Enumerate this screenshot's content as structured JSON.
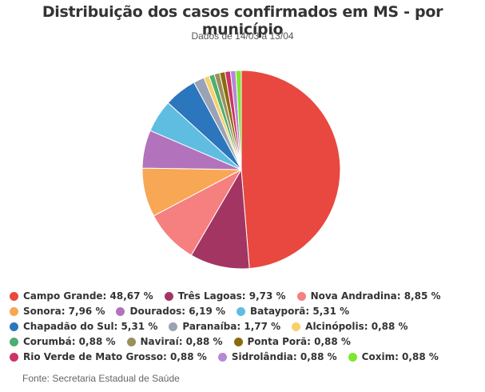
{
  "header": {
    "title": "Distribuição dos casos confirmados em MS - por município",
    "subtitle": "Dados de 14/03 a 13/04"
  },
  "footer": {
    "source": "Fonte: Secretaria Estadual de Saúde"
  },
  "chart_data": {
    "type": "pie",
    "title": "Distribuição dos casos confirmados em MS - por município",
    "subtitle": "Dados de 14/03 a 13/04",
    "legend_position": "bottom",
    "slices": [
      {
        "name": "Campo Grande",
        "value": 48.67,
        "label": "Campo Grande: 48,67 %",
        "color": "#e8483f"
      },
      {
        "name": "Três Lagoas",
        "value": 9.73,
        "label": "Três Lagoas: 9,73 %",
        "color": "#a33563"
      },
      {
        "name": "Nova Andradina",
        "value": 8.85,
        "label": "Nova Andradina: 8,85 %",
        "color": "#f67f7f"
      },
      {
        "name": "Sonora",
        "value": 7.96,
        "label": "Sonora: 7,96 %",
        "color": "#f8a755"
      },
      {
        "name": "Dourados",
        "value": 6.19,
        "label": "Dourados: 6,19 %",
        "color": "#b373bc"
      },
      {
        "name": "Batayporã",
        "value": 5.31,
        "label": "Batayporã: 5,31 %",
        "color": "#5ebde0"
      },
      {
        "name": "Chapadão do Sul",
        "value": 5.31,
        "label": "Chapadão do Sul: 5,31 %",
        "color": "#2c76bd"
      },
      {
        "name": "Paranaíba",
        "value": 1.77,
        "label": "Paranaíba: 1,77 %",
        "color": "#9aa2b5"
      },
      {
        "name": "Alcinópolis",
        "value": 0.88,
        "label": "Alcinópolis: 0,88 %",
        "color": "#f7cf6b"
      },
      {
        "name": "Corumbá",
        "value": 0.88,
        "label": "Corumbá: 0,88 %",
        "color": "#4fae6d"
      },
      {
        "name": "Naviraí",
        "value": 0.88,
        "label": "Naviraí: 0,88 %",
        "color": "#9c8f5c"
      },
      {
        "name": "Ponta Porã",
        "value": 0.88,
        "label": "Ponta Porã: 0,88 %",
        "color": "#8a6b0c"
      },
      {
        "name": "Rio Verde de Mato Grosso",
        "value": 0.88,
        "label": "Rio Verde de Mato Grosso: 0,88 %",
        "color": "#cc3366"
      },
      {
        "name": "Sidrolândia",
        "value": 0.88,
        "label": "Sidrolândia: 0,88 %",
        "color": "#b589d6"
      },
      {
        "name": "Coxim",
        "value": 0.88,
        "label": "Coxim: 0,88 %",
        "color": "#7ee62f"
      }
    ]
  }
}
